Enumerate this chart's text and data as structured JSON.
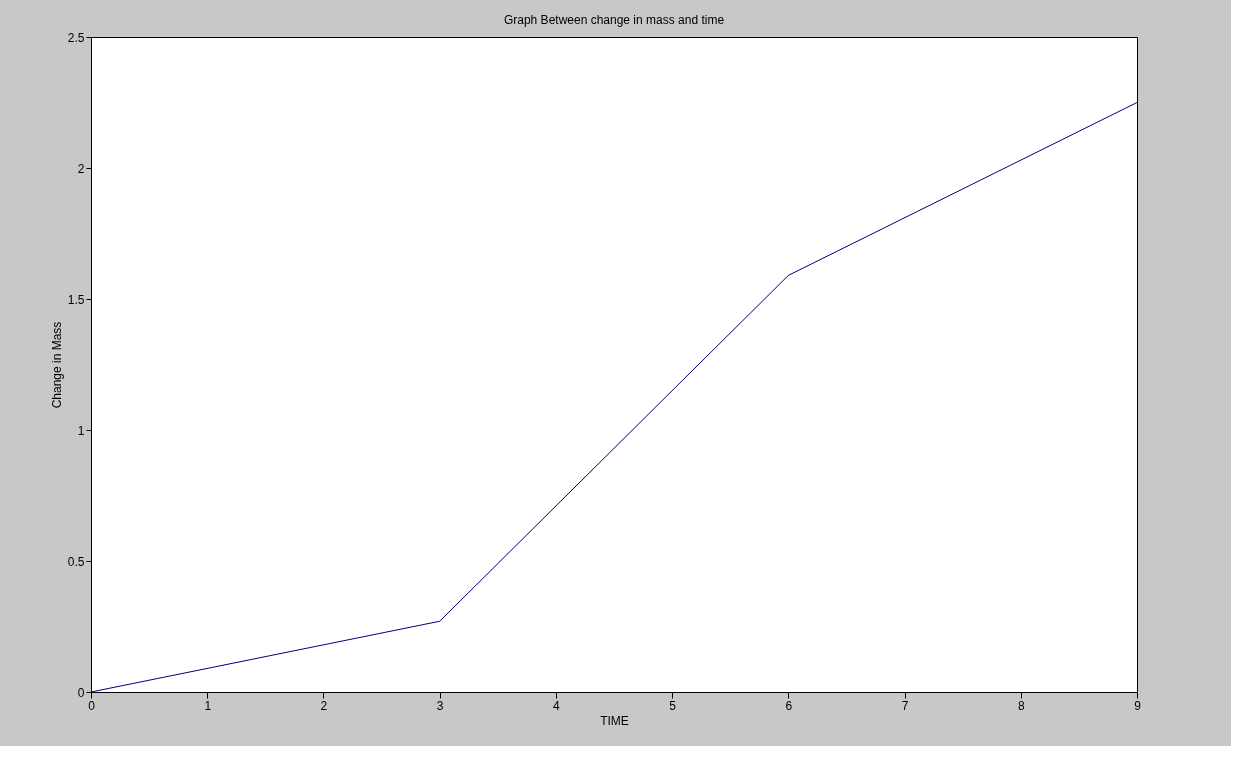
{
  "chart_data": {
    "type": "line",
    "title": "Graph Between change in mass and time",
    "xlabel": "TIME",
    "ylabel": "Change in Mass",
    "x": [
      0,
      3,
      6,
      9
    ],
    "series": [
      {
        "color": "#000080",
        "values": [
          0,
          0.27,
          1.59,
          2.25
        ]
      }
    ],
    "xlim": [
      0,
      9
    ],
    "xticks": [
      0,
      1,
      2,
      3,
      4,
      5,
      6,
      7,
      8,
      9
    ],
    "ylim": [
      0,
      2.5
    ],
    "yticks": [
      0,
      0.5,
      1,
      1.5,
      2,
      2.5
    ],
    "grid": false,
    "legend": false,
    "marker": "none",
    "line_style": "solid"
  }
}
